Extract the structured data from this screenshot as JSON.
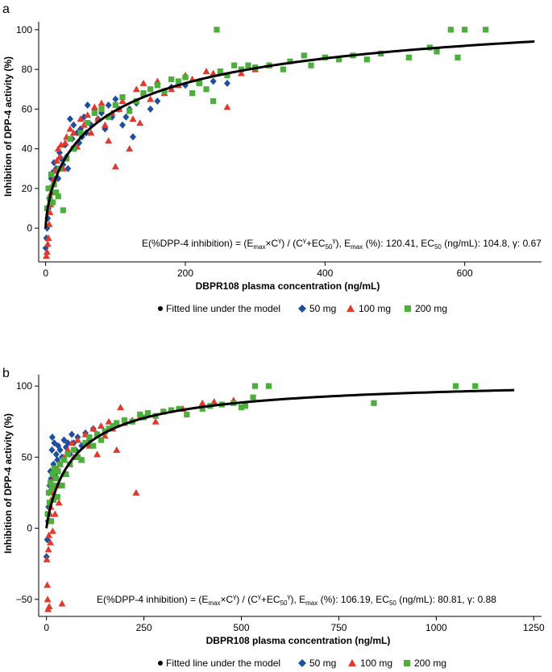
{
  "figure": {
    "colors": {
      "fit": "#000000",
      "dose_50": "#1f4e9c",
      "dose_100": "#e03a2f",
      "dose_200": "#4caf3c",
      "axis": "#000000"
    }
  },
  "chart_data": [
    {
      "type": "scatter",
      "panel_label": "a",
      "xlabel": "DBPR108 plasma concentration (ng/mL)",
      "ylabel": "Inhibition of DPP-4 activity (%)",
      "xlim": [
        -10,
        710
      ],
      "ylim": [
        -17,
        104
      ],
      "xticks": [
        0,
        200,
        400,
        600
      ],
      "yticks": [
        0,
        20,
        40,
        60,
        80,
        100
      ],
      "x_tick_labels": [
        "0",
        "200",
        "400",
        "600"
      ],
      "y_tick_labels": [
        "0",
        "20",
        "40",
        "60",
        "80",
        "100"
      ],
      "annotation": {
        "lead": "E(%DPP-4 inhibition) = (E",
        "sub1": "max",
        "mid1": "×C",
        "sup1": "γ",
        "mid2": ") / (C",
        "sup2": "γ",
        "mid3": "+EC",
        "sub2": "50",
        "sup3": "γ",
        "mid4": "), E",
        "sub3": "max",
        "mid5": " (%): 120.41, EC",
        "sub4": "50",
        "tail": " (ng/mL): 104.8, γ: 0.67"
      },
      "fit": {
        "emax": 120.41,
        "ec50": 104.8,
        "gamma": 0.67,
        "x_max": 700
      },
      "legend": {
        "position": "bottom",
        "items": [
          {
            "label": "Fitted line under the model",
            "marker": "dot"
          },
          {
            "label": "50 mg",
            "marker": "diamond"
          },
          {
            "label": "100 mg",
            "marker": "triangle"
          },
          {
            "label": "200 mg",
            "marker": "square"
          }
        ]
      },
      "series": [
        {
          "name": "50 mg",
          "marker": "diamond",
          "x": [
            0,
            1,
            2,
            3,
            4,
            5,
            6,
            8,
            10,
            12,
            15,
            18,
            20,
            22,
            25,
            28,
            30,
            32,
            35,
            38,
            40,
            42,
            45,
            48,
            50,
            52,
            55,
            58,
            60,
            65,
            70,
            75,
            80,
            85,
            90,
            95,
            100,
            105,
            110,
            115,
            120,
            125,
            130,
            140,
            150,
            160,
            170,
            180,
            200,
            240,
            260
          ],
          "y": [
            -10,
            -5,
            0,
            5,
            10,
            15,
            20,
            25,
            28,
            33,
            30,
            25,
            38,
            35,
            32,
            42,
            36,
            30,
            55,
            45,
            52,
            40,
            48,
            43,
            50,
            46,
            56,
            48,
            62,
            52,
            60,
            55,
            58,
            50,
            62,
            56,
            65,
            60,
            52,
            56,
            60,
            46,
            63,
            67,
            60,
            64,
            69,
            71,
            72,
            74,
            73
          ]
        },
        {
          "name": "100 mg",
          "marker": "triangle",
          "x": [
            1,
            2,
            3,
            4,
            5,
            6,
            7,
            8,
            10,
            12,
            14,
            16,
            18,
            20,
            22,
            25,
            28,
            30,
            35,
            40,
            45,
            50,
            55,
            60,
            65,
            70,
            75,
            80,
            85,
            90,
            95,
            100,
            105,
            110,
            120,
            125,
            130,
            135,
            140,
            150,
            160,
            170,
            180,
            190,
            200,
            210,
            220,
            230,
            240,
            260,
            280,
            300,
            320
          ],
          "y": [
            -14,
            -12,
            -8,
            -5,
            2,
            8,
            12,
            18,
            22,
            25,
            29,
            34,
            40,
            36,
            42,
            30,
            43,
            46,
            50,
            48,
            41,
            55,
            52,
            57,
            48,
            61,
            55,
            63,
            52,
            44,
            58,
            31,
            60,
            64,
            40,
            55,
            70,
            53,
            73,
            65,
            74,
            68,
            70,
            72,
            77,
            75,
            74,
            79,
            78,
            61,
            78,
            80,
            82
          ]
        },
        {
          "name": "200 mg",
          "marker": "square",
          "x": [
            2,
            4,
            6,
            8,
            10,
            12,
            15,
            18,
            20,
            25,
            30,
            35,
            40,
            50,
            60,
            70,
            80,
            90,
            100,
            110,
            120,
            130,
            140,
            150,
            160,
            170,
            180,
            190,
            200,
            210,
            220,
            230,
            240,
            245,
            250,
            260,
            270,
            280,
            290,
            300,
            320,
            340,
            350,
            370,
            380,
            400,
            420,
            440,
            460,
            480,
            520,
            550,
            560,
            580,
            590,
            600,
            630
          ],
          "y": [
            10,
            20,
            15,
            27,
            13,
            22,
            18,
            16,
            30,
            9,
            35,
            45,
            40,
            48,
            53,
            58,
            60,
            56,
            62,
            66,
            59,
            64,
            68,
            70,
            72,
            69,
            75,
            74,
            76,
            68,
            73,
            70,
            64,
            100,
            79,
            77,
            82,
            80,
            82,
            81,
            82,
            80,
            84,
            87,
            82,
            86,
            85,
            87,
            85,
            88,
            86,
            91,
            89,
            100,
            86,
            100,
            100
          ]
        }
      ]
    },
    {
      "type": "scatter",
      "panel_label": "b",
      "xlabel": "DBPR108 plasma concentration (ng/mL)",
      "ylabel": "Inhibition of DPP-4 activity (%)",
      "xlim": [
        -20,
        1270
      ],
      "ylim": [
        -62,
        108
      ],
      "xticks": [
        0,
        250,
        500,
        750,
        1000,
        1250
      ],
      "yticks": [
        -50,
        0,
        50,
        100
      ],
      "x_tick_labels": [
        "0",
        "250",
        "500",
        "750",
        "1000",
        "1250"
      ],
      "y_tick_labels": [
        "−50",
        "0",
        "50",
        "100"
      ],
      "annotation": {
        "lead": "E(%DPP-4 inhibition) = (E",
        "sub1": "max",
        "mid1": "×C",
        "sup1": "γ",
        "mid2": ") / (C",
        "sup2": "γ",
        "mid3": "+EC",
        "sub2": "50",
        "sup3": "γ",
        "mid4": "), E",
        "sub3": "max",
        "mid5": " (%): 106.19, EC",
        "sub4": "50",
        "tail": " (ng/mL): 80.81, γ: 0.88"
      },
      "fit": {
        "emax": 106.19,
        "ec50": 80.81,
        "gamma": 0.88,
        "x_max": 1200
      },
      "legend": {
        "position": "bottom",
        "items": [
          {
            "label": "Fitted line under the model",
            "marker": "dot"
          },
          {
            "label": "50 mg",
            "marker": "diamond"
          },
          {
            "label": "100 mg",
            "marker": "triangle"
          },
          {
            "label": "200 mg",
            "marker": "square"
          }
        ]
      },
      "series": [
        {
          "name": "50 mg",
          "marker": "diamond",
          "x": [
            0,
            2,
            4,
            5,
            6,
            8,
            10,
            12,
            14,
            15,
            18,
            20,
            22,
            25,
            28,
            30,
            35,
            40,
            45,
            50,
            55,
            60,
            65,
            70,
            75,
            80,
            90,
            100,
            110,
            120,
            130
          ],
          "y": [
            -20,
            -8,
            5,
            15,
            25,
            30,
            40,
            35,
            55,
            64,
            45,
            60,
            38,
            52,
            48,
            58,
            55,
            50,
            62,
            57,
            60,
            52,
            66,
            60,
            55,
            64,
            58,
            67,
            62,
            70,
            66
          ]
        },
        {
          "name": "100 mg",
          "marker": "triangle",
          "x": [
            1,
            2,
            3,
            4,
            5,
            6,
            7,
            8,
            9,
            10,
            11,
            12,
            14,
            15,
            16,
            18,
            20,
            22,
            25,
            28,
            30,
            32,
            35,
            40,
            45,
            50,
            55,
            60,
            65,
            70,
            80,
            90,
            100,
            110,
            120,
            130,
            140,
            150,
            160,
            170,
            180,
            190,
            200,
            220,
            230,
            240,
            260,
            280,
            300,
            350,
            400,
            430,
            480
          ],
          "y": [
            -22,
            -40,
            -50,
            -57,
            -15,
            -5,
            -55,
            5,
            10,
            -10,
            15,
            20,
            25,
            30,
            -2,
            35,
            40,
            10,
            22,
            42,
            30,
            18,
            45,
            -53,
            50,
            38,
            55,
            45,
            60,
            50,
            62,
            48,
            66,
            58,
            70,
            52,
            72,
            65,
            75,
            70,
            55,
            85,
            74,
            76,
            25,
            78,
            80,
            75,
            82,
            84,
            88,
            89,
            90
          ]
        },
        {
          "name": "200 mg",
          "marker": "square",
          "x": [
            3,
            6,
            8,
            10,
            12,
            14,
            16,
            18,
            20,
            22,
            25,
            28,
            30,
            35,
            40,
            45,
            50,
            55,
            60,
            70,
            80,
            90,
            100,
            110,
            120,
            130,
            140,
            150,
            160,
            170,
            180,
            200,
            220,
            240,
            250,
            260,
            280,
            300,
            320,
            340,
            360,
            400,
            420,
            450,
            480,
            500,
            510,
            530,
            535,
            570,
            840,
            1050,
            1100
          ],
          "y": [
            10,
            25,
            18,
            32,
            5,
            28,
            38,
            20,
            42,
            30,
            35,
            22,
            40,
            45,
            30,
            48,
            38,
            52,
            45,
            55,
            50,
            48,
            60,
            64,
            58,
            66,
            62,
            68,
            70,
            72,
            74,
            76,
            75,
            80,
            78,
            81,
            79,
            82,
            83,
            84,
            80,
            84,
            86,
            87,
            88,
            85,
            86,
            92,
            100,
            100,
            88,
            100,
            100
          ]
        }
      ]
    }
  ]
}
